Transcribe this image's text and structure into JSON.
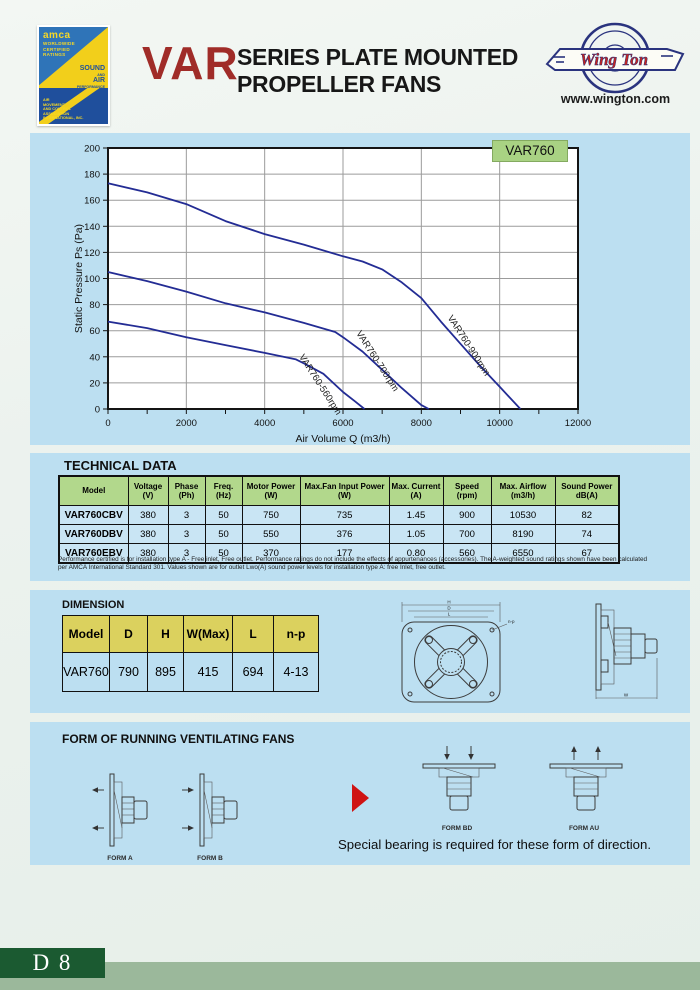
{
  "header": {
    "product_code": "VAR",
    "title_line1": "SERIES PLATE MOUNTED",
    "title_line2": "PROPELLER FANS",
    "brand": "Wing Ton",
    "website": "www.wington.com",
    "amca": {
      "name": "amca",
      "top_lines": [
        "WORLDWIDE",
        "CERTIFIED",
        "RATINGS"
      ],
      "mid_line1": "SOUND",
      "mid_line2": "AND",
      "mid_line3": "AIR",
      "mid_line4": "PERFORMANCE",
      "bottom_lines": [
        "AIR",
        "MOVEMENT",
        "AND CONTROL",
        "ASSOCIATION",
        "INTERNATIONAL, INC."
      ]
    }
  },
  "chart_data": {
    "type": "line",
    "title": "VAR760",
    "xlabel": "Air Volume Q (m3/h)",
    "ylabel": "Static Pressure Ps (Pa)",
    "xlim": [
      0,
      12000
    ],
    "ylim": [
      0,
      200
    ],
    "x_tick_step": 2000,
    "x_minor_step": 1000,
    "y_tick_step": 20,
    "grid": true,
    "legend_position": "on-curve",
    "color": "#232c94",
    "series": [
      {
        "name": "VAR760-560rpm",
        "label_at": [
          4870,
          40
        ],
        "label_angle": 57,
        "points": [
          [
            0,
            67
          ],
          [
            1000,
            62
          ],
          [
            2000,
            55
          ],
          [
            3000,
            49
          ],
          [
            4000,
            43
          ],
          [
            4800,
            38
          ],
          [
            5000,
            35
          ],
          [
            5500,
            27
          ],
          [
            6000,
            13
          ],
          [
            6300,
            6
          ],
          [
            6550,
            0
          ]
        ]
      },
      {
        "name": "VAR760-700rpm",
        "label_at": [
          6330,
          58
        ],
        "label_angle": 57,
        "points": [
          [
            0,
            105
          ],
          [
            1000,
            98
          ],
          [
            2000,
            90
          ],
          [
            3000,
            81
          ],
          [
            4000,
            74
          ],
          [
            5000,
            66
          ],
          [
            5800,
            59
          ],
          [
            6000,
            55
          ],
          [
            6500,
            44
          ],
          [
            7000,
            30
          ],
          [
            7500,
            16
          ],
          [
            8000,
            3
          ],
          [
            8190,
            0
          ]
        ]
      },
      {
        "name": "VAR760-900rpm",
        "label_at": [
          8660,
          70
        ],
        "label_angle": 57,
        "points": [
          [
            0,
            173
          ],
          [
            1000,
            166
          ],
          [
            2000,
            157
          ],
          [
            3000,
            144
          ],
          [
            4000,
            134
          ],
          [
            5000,
            126
          ],
          [
            6000,
            117
          ],
          [
            6500,
            113
          ],
          [
            7000,
            107
          ],
          [
            7500,
            97
          ],
          [
            8000,
            85
          ],
          [
            8500,
            67
          ],
          [
            9000,
            50
          ],
          [
            9500,
            33
          ],
          [
            10000,
            17
          ],
          [
            10530,
            0
          ]
        ]
      }
    ]
  },
  "technical": {
    "section_title": "TECHNICAL DATA",
    "headers": [
      {
        "t": "Model",
        "s": ""
      },
      {
        "t": "Voltage",
        "s": "(V)"
      },
      {
        "t": "Phase",
        "s": "(Ph)"
      },
      {
        "t": "Freq.",
        "s": "(Hz)"
      },
      {
        "t": "Motor Power",
        "s": "(W)"
      },
      {
        "t": "Max.Fan Input Power",
        "s": "(W)"
      },
      {
        "t": "Max. Current",
        "s": "(A)"
      },
      {
        "t": "Speed",
        "s": "(rpm)"
      },
      {
        "t": "Max. Airflow",
        "s": "(m3/h)"
      },
      {
        "t": "Sound Power",
        "s": "dB(A)"
      }
    ],
    "rows": [
      [
        "VAR760CBV",
        "380",
        "3",
        "50",
        "750",
        "735",
        "1.45",
        "900",
        "10530",
        "82"
      ],
      [
        "VAR760DBV",
        "380",
        "3",
        "50",
        "550",
        "376",
        "1.05",
        "700",
        "8190",
        "74"
      ],
      [
        "VAR760EBV",
        "380",
        "3",
        "50",
        "370",
        "177",
        "0.80",
        "560",
        "6550",
        "67"
      ]
    ],
    "footnote": "Performance certified is for installation type A - Free inlet, Free outlet. Performance ratings do not include the effects of appurtenances (accessories). The A-weighted sound ratings shown have been calculated per AMCA International Standard 301. Values shown are for outlet Lwo(A) sound power levels for installation type A: free Inlet, free outlet."
  },
  "dimension": {
    "section_title": "DIMENSION",
    "headers": [
      "Model",
      "D",
      "H",
      "W(Max)",
      "L",
      "n-p"
    ],
    "row": [
      "VAR760",
      "790",
      "895",
      "415",
      "694",
      "4-13"
    ],
    "front_dims": [
      "H",
      "D",
      "L"
    ],
    "front_callout": "n-p",
    "side_dim": "W"
  },
  "forms": {
    "section_title": "FORM OF RUNNING VENTILATING FANS",
    "labels": [
      "FORM A",
      "FORM B",
      "FORM BD",
      "FORM AU"
    ],
    "note": "Special bearing is required for these form of direction."
  },
  "footer": {
    "page": "D 8"
  },
  "colors": {
    "panel_blue": "#bcdff1",
    "curve_navy": "#232c94",
    "table_header_green": "#b2d88c",
    "table_header_yellow": "#dbd15e",
    "badge_green": "#a9d283",
    "accent_red": "#a02c28",
    "footer_green": "#1b5a31",
    "footer_band": "#9bb89b"
  }
}
